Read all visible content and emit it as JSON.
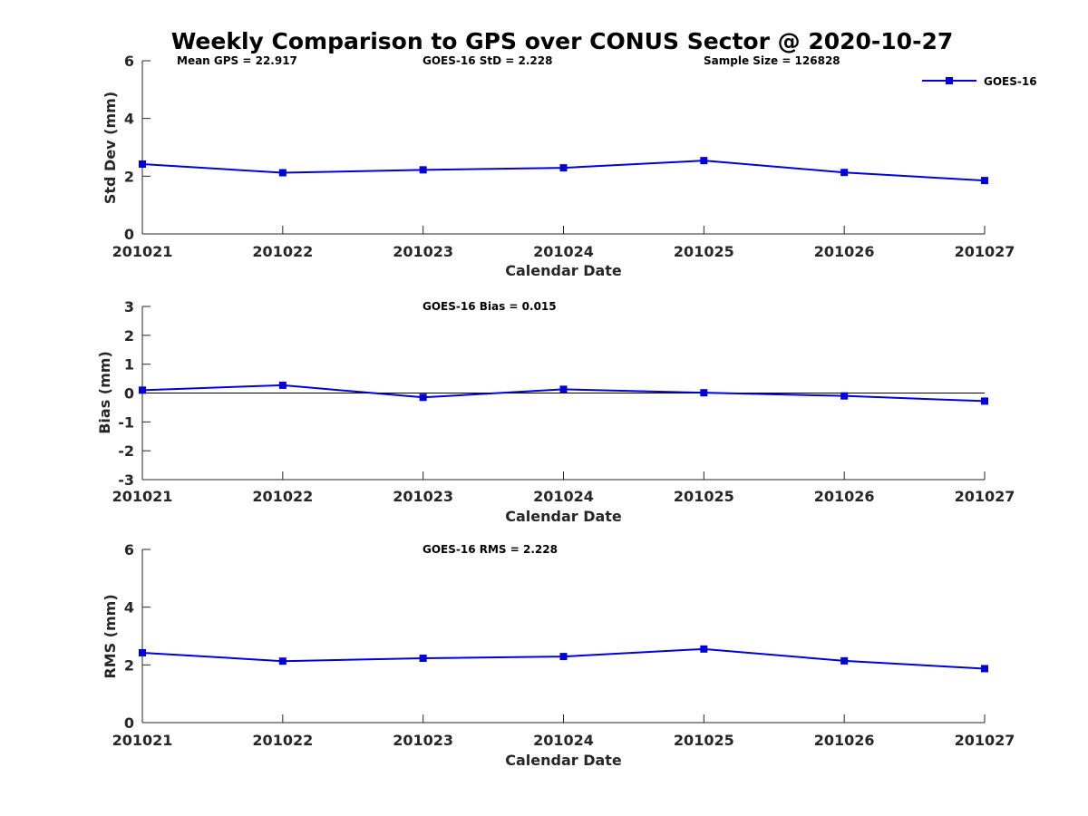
{
  "title": "Weekly Comparison to GPS over CONUS Sector @ 2020-10-27",
  "colors": {
    "series": "#0000dd",
    "axis": "#262626",
    "text": "#000000"
  },
  "legend": {
    "label": "GOES-16",
    "placement": "top-right"
  },
  "chart_data": [
    {
      "type": "line",
      "id": "std",
      "title": "Weekly Comparison to GPS over CONUS Sector @ 2020-10-27",
      "xlabel": "Calendar Date",
      "ylabel": "Std Dev (mm)",
      "categories": [
        "201021",
        "201022",
        "201023",
        "201024",
        "201025",
        "201026",
        "201027"
      ],
      "ylim": [
        0,
        6
      ],
      "yticks": [
        0,
        2,
        4,
        6
      ],
      "zero_line": false,
      "series": [
        {
          "name": "GOES-16",
          "values": [
            2.42,
            2.12,
            2.22,
            2.29,
            2.54,
            2.13,
            1.85
          ]
        }
      ],
      "annotations": [
        "Mean GPS = 22.917",
        "GOES-16 StD = 2.228",
        "Sample Size = 126828"
      ],
      "legend": "top-right"
    },
    {
      "type": "line",
      "id": "bias",
      "xlabel": "Calendar Date",
      "ylabel": "Bias (mm)",
      "categories": [
        "201021",
        "201022",
        "201023",
        "201024",
        "201025",
        "201026",
        "201027"
      ],
      "ylim": [
        -3,
        3
      ],
      "yticks": [
        -3,
        -2,
        -1,
        0,
        1,
        2,
        3
      ],
      "zero_line": true,
      "series": [
        {
          "name": "GOES-16",
          "values": [
            0.1,
            0.27,
            -0.15,
            0.13,
            0.01,
            -0.1,
            -0.28
          ]
        }
      ],
      "annotations": [
        "GOES-16 Bias  = 0.015"
      ]
    },
    {
      "type": "line",
      "id": "rms",
      "xlabel": "Calendar Date",
      "ylabel": "RMS (mm)",
      "categories": [
        "201021",
        "201022",
        "201023",
        "201024",
        "201025",
        "201026",
        "201027"
      ],
      "ylim": [
        0,
        6
      ],
      "yticks": [
        0,
        2,
        4,
        6
      ],
      "zero_line": false,
      "series": [
        {
          "name": "GOES-16",
          "values": [
            2.42,
            2.13,
            2.23,
            2.29,
            2.55,
            2.14,
            1.87
          ]
        }
      ],
      "annotations": [
        "GOES-16 RMS = 2.228"
      ]
    }
  ]
}
